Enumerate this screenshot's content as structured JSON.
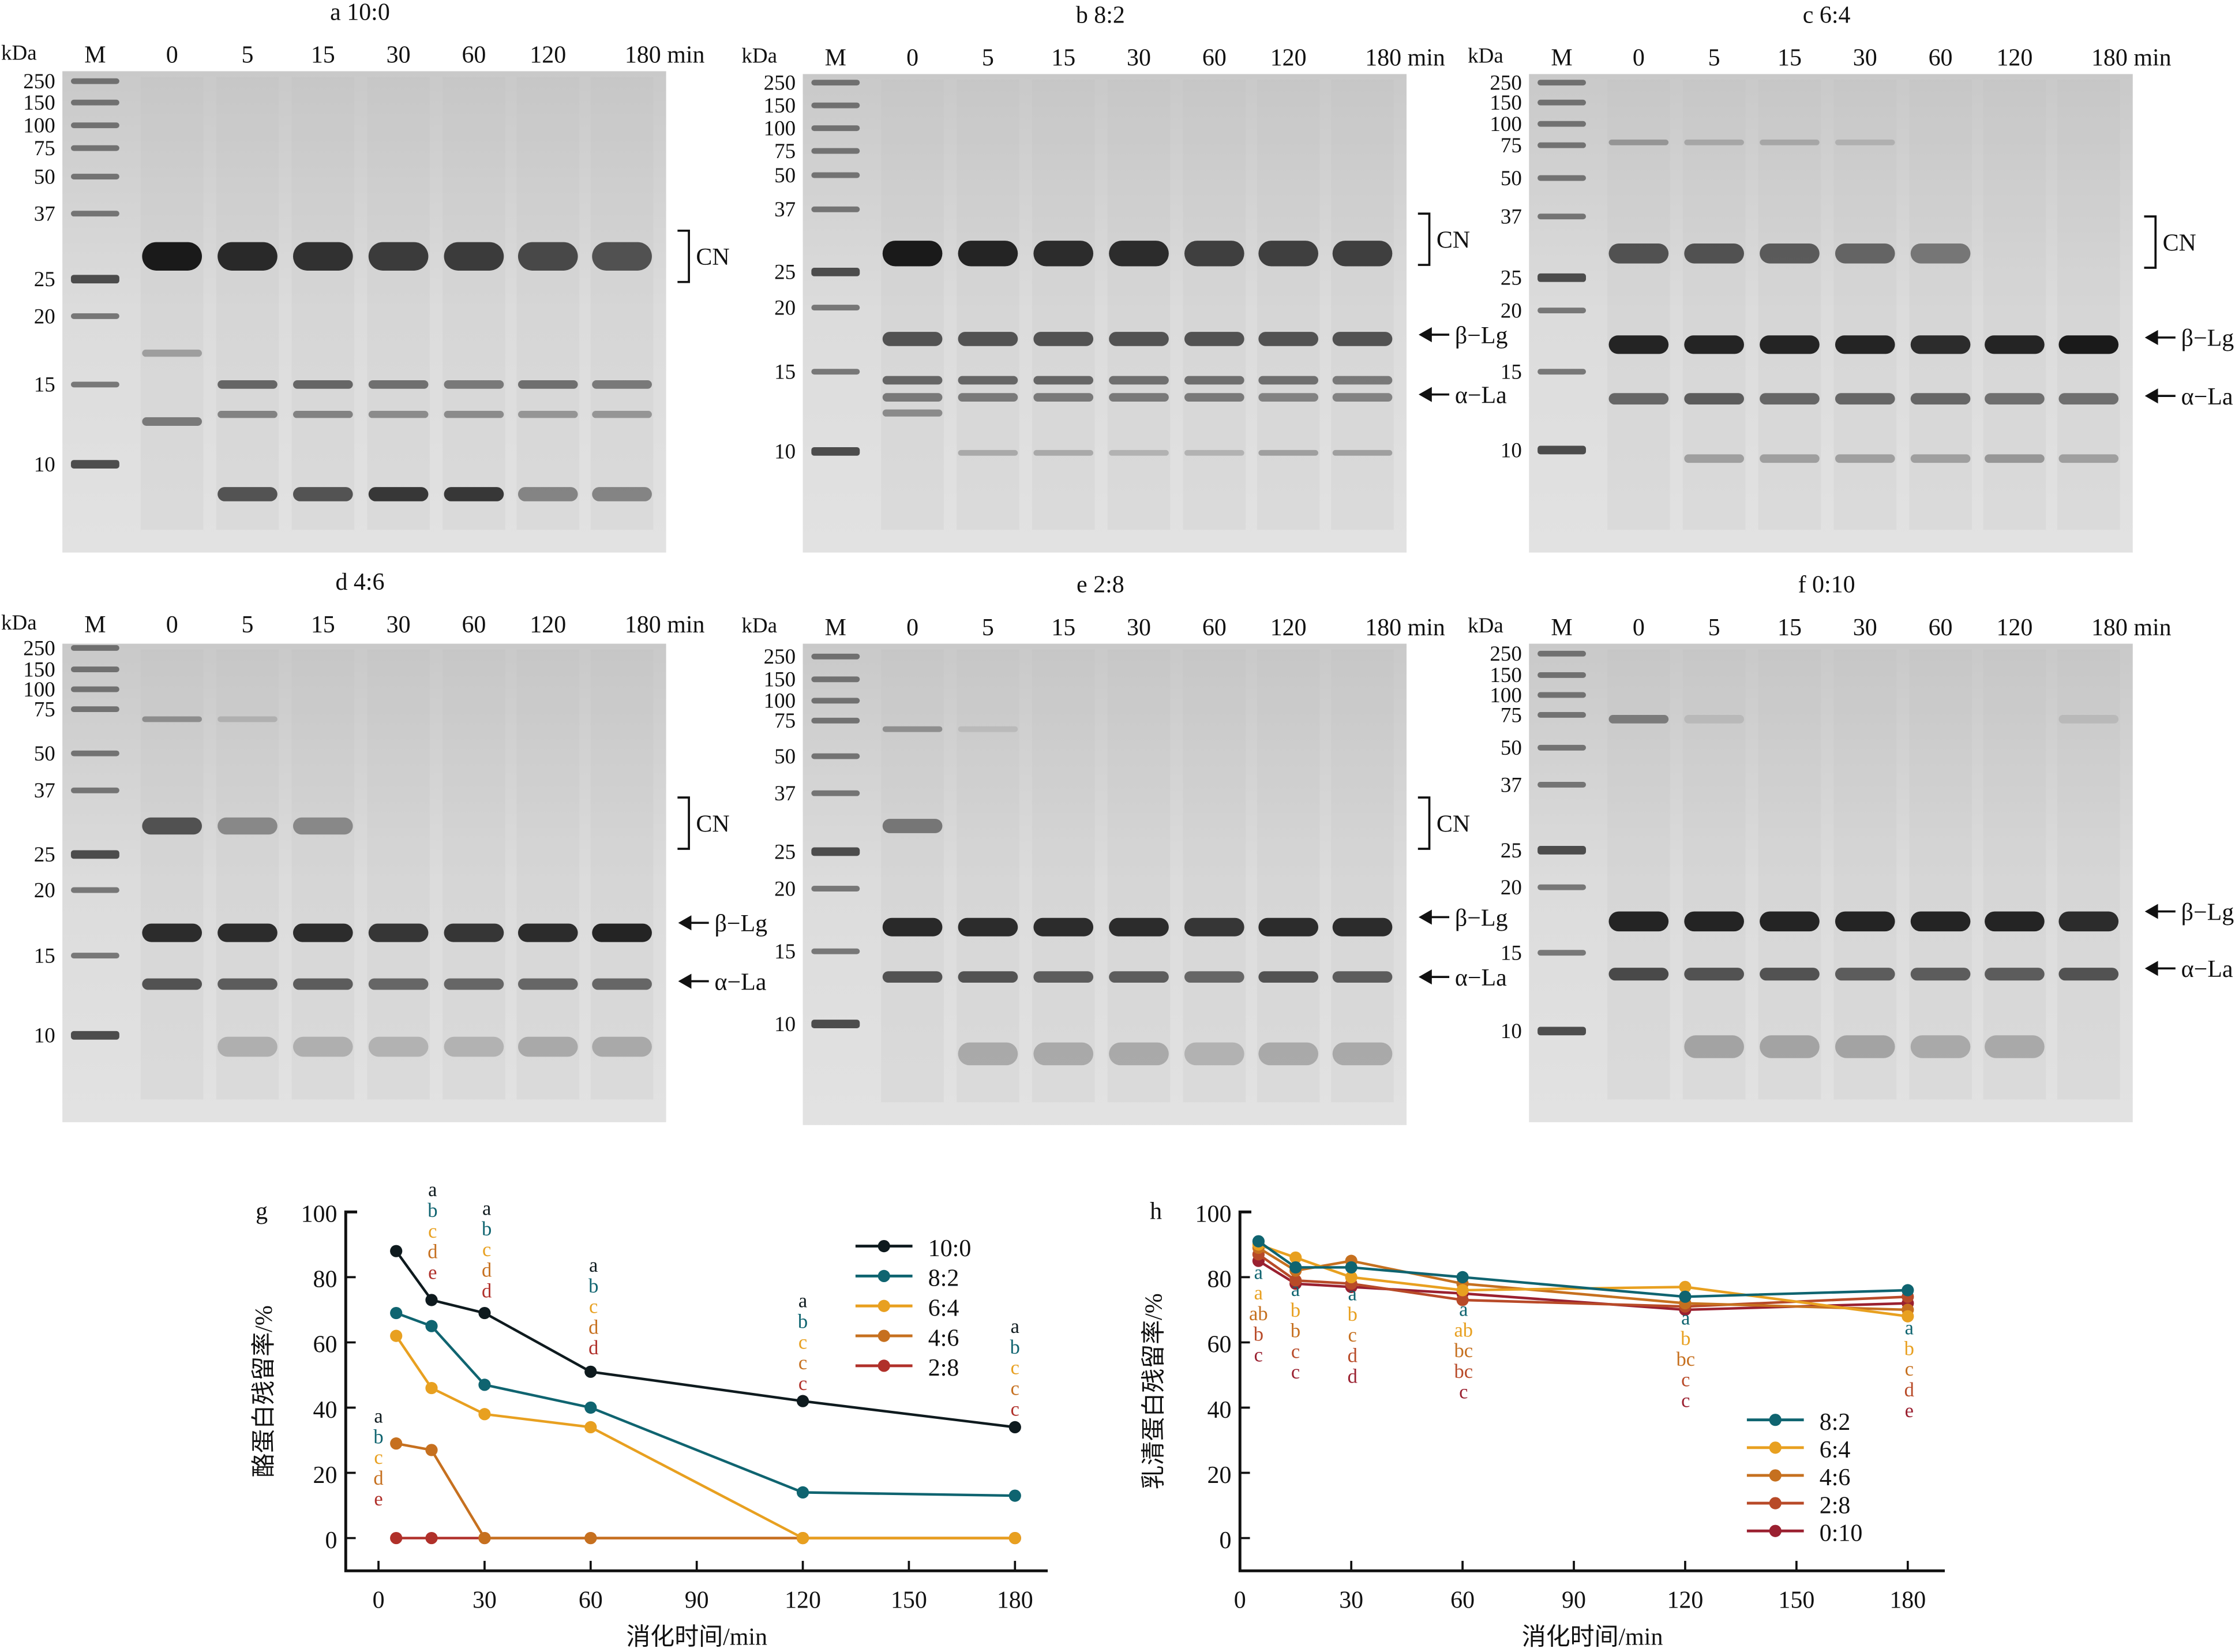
{
  "gels": [
    {
      "id": "a",
      "title": "a 10:0",
      "kda": "kDa",
      "lanes": [
        "M",
        "0",
        "5",
        "15",
        "30",
        "60",
        "120",
        "180 min"
      ],
      "markers": [
        "250",
        "150",
        "100",
        "75",
        "50",
        "37",
        "25",
        "20",
        "15",
        "10"
      ],
      "annotations": [
        "CN"
      ]
    },
    {
      "id": "b",
      "title": "b 8:2",
      "kda": "kDa",
      "lanes": [
        "M",
        "0",
        "5",
        "15",
        "30",
        "60",
        "120",
        "180 min"
      ],
      "markers": [
        "250",
        "150",
        "100",
        "75",
        "50",
        "37",
        "25",
        "20",
        "15",
        "10"
      ],
      "annotations": [
        "CN",
        "β−Lg",
        "α−La"
      ]
    },
    {
      "id": "c",
      "title": "c 6:4",
      "kda": "kDa",
      "lanes": [
        "M",
        "0",
        "5",
        "15",
        "30",
        "60",
        "120",
        "180 min"
      ],
      "markers": [
        "250",
        "150",
        "100",
        "75",
        "50",
        "37",
        "25",
        "20",
        "15",
        "10"
      ],
      "annotations": [
        "CN",
        "β−Lg",
        "α−La"
      ]
    },
    {
      "id": "d",
      "title": "d 4:6",
      "kda": "kDa",
      "lanes": [
        "M",
        "0",
        "5",
        "15",
        "30",
        "60",
        "120",
        "180 min"
      ],
      "markers": [
        "250",
        "150",
        "100",
        "75",
        "50",
        "37",
        "25",
        "20",
        "15",
        "10"
      ],
      "annotations": [
        "CN",
        "β−Lg",
        "α−La"
      ]
    },
    {
      "id": "e",
      "title": "e 2:8",
      "kda": "kDa",
      "lanes": [
        "M",
        "0",
        "5",
        "15",
        "30",
        "60",
        "120",
        "180 min"
      ],
      "markers": [
        "250",
        "150",
        "100",
        "75",
        "50",
        "37",
        "25",
        "20",
        "15",
        "10"
      ],
      "annotations": [
        "CN",
        "β−Lg",
        "α−La"
      ]
    },
    {
      "id": "f",
      "title": "f 0:10",
      "kda": "kDa",
      "lanes": [
        "M",
        "0",
        "5",
        "15",
        "30",
        "60",
        "120",
        "180 min"
      ],
      "markers": [
        "250",
        "150",
        "100",
        "75",
        "50",
        "37",
        "25",
        "20",
        "15",
        "10"
      ],
      "annotations": [
        "β−Lg",
        "α−La"
      ]
    }
  ],
  "chart_data": [
    {
      "panel": "g",
      "type": "line",
      "xlabel": "消化时间/min",
      "ylabel": "酪蛋白残留率/%",
      "xlim": [
        0,
        180
      ],
      "ylim": [
        -10,
        100
      ],
      "xticks": [
        0,
        30,
        60,
        90,
        120,
        150,
        180
      ],
      "yticks": [
        0,
        20,
        40,
        60,
        80,
        100
      ],
      "grid": false,
      "legend": "top-right",
      "error_bars": true,
      "x": [
        5,
        15,
        30,
        60,
        120,
        180
      ],
      "series": [
        {
          "name": "10:0",
          "color": "#0e1a1e",
          "values": [
            88,
            73,
            69,
            51,
            42,
            34
          ]
        },
        {
          "name": "8:2",
          "color": "#0f6470",
          "values": [
            69,
            65,
            47,
            40,
            14,
            13
          ]
        },
        {
          "name": "6:4",
          "color": "#e8a020",
          "values": [
            62,
            46,
            38,
            34,
            0,
            0
          ]
        },
        {
          "name": "4:6",
          "color": "#c6701f",
          "values": [
            29,
            27,
            0,
            0,
            0,
            0
          ]
        },
        {
          "name": "2:8",
          "color": "#b0302a",
          "values": [
            0,
            0,
            0,
            0,
            0,
            0
          ]
        }
      ],
      "significance": [
        [
          "a",
          "b",
          "c",
          "d",
          "e"
        ],
        [
          "a",
          "b",
          "c",
          "d",
          "e"
        ],
        [
          "a",
          "b",
          "c",
          "d",
          "d"
        ],
        [
          "a",
          "b",
          "c",
          "d",
          "d"
        ],
        [
          "a",
          "b",
          "c",
          "c",
          "c"
        ],
        [
          "a",
          "b",
          "c",
          "c",
          "c"
        ]
      ]
    },
    {
      "panel": "h",
      "type": "line",
      "xlabel": "消化时间/min",
      "ylabel": "乳清蛋白残留率/%",
      "xlim": [
        0,
        180
      ],
      "ylim": [
        -10,
        100
      ],
      "xticks": [
        0,
        30,
        60,
        90,
        120,
        150,
        180
      ],
      "yticks": [
        0,
        20,
        40,
        60,
        80,
        100
      ],
      "grid": false,
      "legend": "bottom-right",
      "error_bars": true,
      "x": [
        5,
        15,
        30,
        60,
        120,
        180
      ],
      "series": [
        {
          "name": "8:2",
          "color": "#0f6470",
          "values": [
            91,
            83,
            83,
            80,
            74,
            76
          ]
        },
        {
          "name": "6:4",
          "color": "#e8a020",
          "values": [
            90,
            86,
            80,
            76,
            77,
            68
          ]
        },
        {
          "name": "4:6",
          "color": "#c6701f",
          "values": [
            89,
            82,
            85,
            78,
            72,
            70
          ]
        },
        {
          "name": "2:8",
          "color": "#b84a28",
          "values": [
            87,
            79,
            78,
            73,
            71,
            74
          ]
        },
        {
          "name": "0:10",
          "color": "#9a2030",
          "values": [
            85,
            78,
            77,
            75,
            70,
            72
          ]
        }
      ],
      "significance": [
        [
          "a",
          "a",
          "ab",
          "b",
          "c"
        ],
        [
          "a",
          "b",
          "b",
          "c",
          "c"
        ],
        [
          "a",
          "b",
          "c",
          "d",
          "d"
        ],
        [
          "a",
          "ab",
          "bc",
          "bc",
          "c"
        ],
        [
          "a",
          "b",
          "bc",
          "c",
          "c"
        ],
        [
          "a",
          "b",
          "c",
          "d",
          "e"
        ]
      ]
    }
  ]
}
